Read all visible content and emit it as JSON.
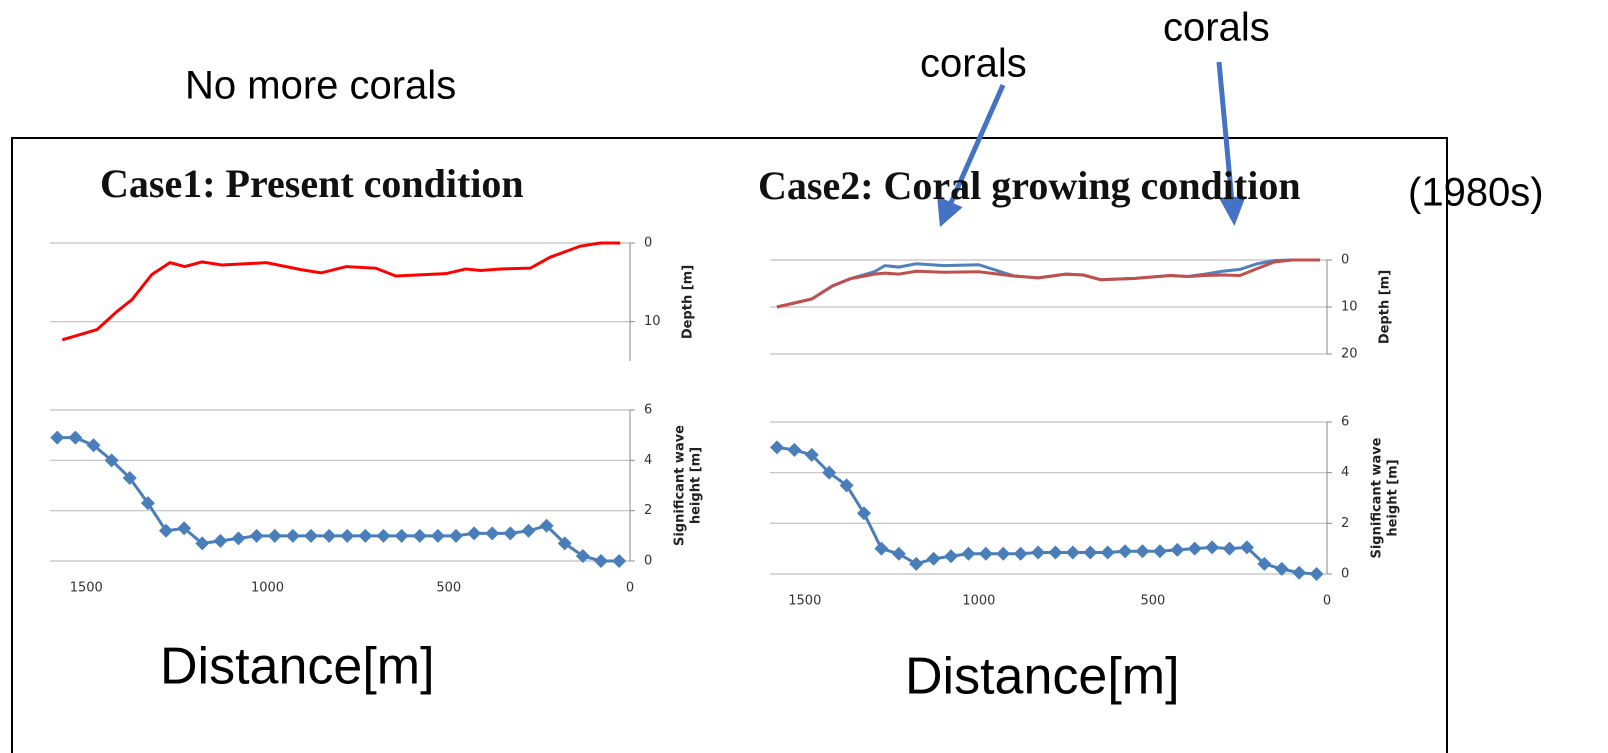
{
  "chart_data": [
    {
      "type": "line",
      "title": "Case1: Present condition",
      "annotations": [
        "No more corals"
      ],
      "y_label": [
        "Depth [m]"
      ],
      "x": [
        1566,
        1470,
        1415,
        1374,
        1319,
        1269,
        1228,
        1181,
        1126,
        1003,
        906,
        852,
        783,
        701,
        646,
        508,
        453,
        412,
        357,
        275,
        220,
        137,
        82,
        27
      ],
      "series": [
        {
          "color": "#ff0000",
          "values": [
            12.3,
            11,
            8.7,
            7.2,
            4,
            2.5,
            3,
            2.4,
            2.8,
            2.5,
            3.4,
            3.8,
            3,
            3.2,
            4.2,
            3.9,
            3.3,
            3.5,
            3.3,
            3.2,
            1.8,
            0.4,
            0,
            0
          ]
        }
      ],
      "xlim": [
        1600,
        0
      ],
      "ylim": [
        15,
        0
      ],
      "yticks": [
        0,
        10
      ],
      "grid": true
    },
    {
      "type": "line",
      "marker": "diamond",
      "x_label": "Distance[m]",
      "y_label": [
        "Significant wave",
        "height [m]"
      ],
      "x": [
        1580,
        1530,
        1480,
        1430,
        1380,
        1330,
        1280,
        1230,
        1180,
        1130,
        1080,
        1030,
        980,
        930,
        880,
        830,
        780,
        730,
        680,
        630,
        580,
        530,
        480,
        430,
        380,
        330,
        280,
        230,
        180,
        130,
        80,
        30
      ],
      "series": [
        {
          "color": "#4a7ebb",
          "values": [
            4.9,
            4.9,
            4.6,
            4.0,
            3.3,
            2.3,
            1.2,
            1.3,
            0.7,
            0.8,
            0.9,
            1.0,
            1.0,
            1.0,
            1.0,
            1.0,
            1.0,
            1.0,
            1.0,
            1.0,
            1.0,
            1.0,
            1.0,
            1.1,
            1.1,
            1.1,
            1.2,
            1.4,
            0.7,
            0.2,
            0.0,
            0.0
          ]
        }
      ],
      "xlim": [
        1600,
        0
      ],
      "ylim": [
        0,
        6
      ],
      "xticks": [
        1500,
        1000,
        500,
        0
      ],
      "yticks": [
        0,
        2,
        4,
        6
      ],
      "grid": true
    },
    {
      "type": "line",
      "title": "Case2: Coral growing condition",
      "annotations": [
        "corals",
        "corals",
        "(1980s)"
      ],
      "y_label": [
        "Depth [m]"
      ],
      "x": [
        1580,
        1480,
        1420,
        1370,
        1300,
        1270,
        1230,
        1180,
        1100,
        1000,
        900,
        830,
        750,
        700,
        650,
        550,
        450,
        400,
        350,
        300,
        250,
        200,
        150,
        100,
        50,
        20
      ],
      "series": [
        {
          "color": "#4f81bd",
          "values": [
            10,
            8.3,
            5.5,
            4,
            2.5,
            1.2,
            1.5,
            0.8,
            1.2,
            1.0,
            3.4,
            3.8,
            3,
            3.2,
            4.2,
            3.9,
            3.3,
            3.5,
            3.0,
            2.4,
            2.0,
            0.8,
            0.1,
            0,
            0,
            0
          ]
        },
        {
          "color": "#c0504d",
          "values": [
            10,
            8.3,
            5.5,
            4,
            3,
            2.8,
            3,
            2.4,
            2.6,
            2.5,
            3.4,
            3.8,
            3,
            3.2,
            4.2,
            3.9,
            3.3,
            3.5,
            3.3,
            3.2,
            3.3,
            1.8,
            0.4,
            0,
            0,
            0
          ]
        }
      ],
      "xlim": [
        1600,
        0
      ],
      "ylim": [
        20,
        0
      ],
      "yticks": [
        0,
        10,
        20
      ],
      "grid": true
    },
    {
      "type": "line",
      "marker": "diamond",
      "x_label": "Distance[m]",
      "y_label": [
        "Significant wave",
        "height [m]"
      ],
      "x": [
        1580,
        1530,
        1480,
        1430,
        1380,
        1330,
        1280,
        1230,
        1180,
        1130,
        1080,
        1030,
        980,
        930,
        880,
        830,
        780,
        730,
        680,
        630,
        580,
        530,
        480,
        430,
        380,
        330,
        280,
        230,
        180,
        130,
        80,
        30
      ],
      "series": [
        {
          "color": "#4a7ebb",
          "values": [
            5.0,
            4.9,
            4.7,
            4.0,
            3.5,
            2.4,
            1.0,
            0.8,
            0.4,
            0.6,
            0.7,
            0.8,
            0.8,
            0.8,
            0.8,
            0.85,
            0.85,
            0.85,
            0.85,
            0.85,
            0.9,
            0.9,
            0.9,
            0.95,
            1.0,
            1.05,
            1.0,
            1.05,
            0.4,
            0.2,
            0.05,
            0.0
          ]
        }
      ],
      "xlim": [
        1600,
        0
      ],
      "ylim": [
        0,
        6
      ],
      "xticks": [
        1500,
        1000,
        500,
        0
      ],
      "yticks": [
        0,
        2,
        4,
        6
      ],
      "grid": true
    }
  ]
}
